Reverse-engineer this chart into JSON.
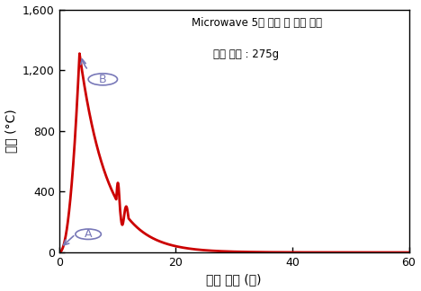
{
  "title_line1": "Microwave 5분 조사 후 대기 방치",
  "title_line2": "시료 무게 : 275g",
  "xlabel": "경과 시간 (분)",
  "ylabel": "온도 (°C)",
  "xlim": [
    0,
    60
  ],
  "ylim": [
    0,
    1600
  ],
  "yticks": [
    0,
    400,
    800,
    1200,
    1600
  ],
  "xticks": [
    0,
    20,
    40,
    60
  ],
  "ytick_labels": [
    "0",
    "400",
    "800",
    "1,200",
    "1,600"
  ],
  "line_color": "#cc0000",
  "circle_color": "#7878b8",
  "background_color": "#ffffff",
  "peak_x": 3.5,
  "peak_y": 1310,
  "bump_x_start": 9.8,
  "bump_x_end": 12.5,
  "decay_rate": 0.21
}
